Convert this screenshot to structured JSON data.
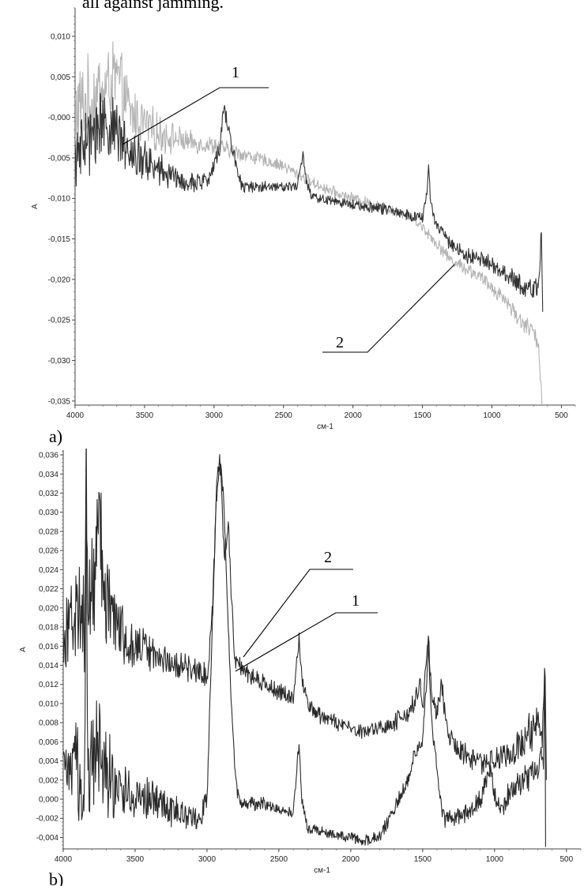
{
  "page_header_text": "all against jamming.",
  "chart_data": [
    {
      "type": "line",
      "panel_label": "a)",
      "xlabel": "см-1",
      "ylabel": "A",
      "xlim": [
        4000,
        400
      ],
      "ylim": [
        -0.0355,
        0.0135
      ],
      "x_ticks": [
        4000,
        3500,
        3000,
        2500,
        2000,
        1500,
        1000,
        500
      ],
      "x_tick_labels": [
        "4000",
        "3500",
        "3000",
        "2500",
        "2000",
        "1500",
        "1000",
        "500"
      ],
      "y_ticks": [
        0.01,
        0.005,
        0.0,
        -0.005,
        -0.01,
        -0.015,
        -0.02,
        -0.025,
        -0.03,
        -0.035
      ],
      "y_tick_labels": [
        "0,010",
        "0,005",
        "-0,000",
        "-0,005",
        "-0,010",
        "-0,015",
        "-0,020",
        "-0,025",
        "-0,030",
        "-0,035"
      ],
      "annotations": [
        "1",
        "2"
      ],
      "series": [
        {
          "color": "#b4b4b4",
          "noise": [
            [
              4000,
              0.0045
            ],
            [
              3800,
              0.005
            ],
            [
              3600,
              0.003
            ],
            [
              3200,
              0.0012
            ],
            [
              2800,
              0.0008
            ],
            [
              2500,
              0.0006
            ],
            [
              1500,
              0.0006
            ],
            [
              1000,
              0.0008
            ],
            [
              700,
              0.001
            ]
          ],
          "x": [
            4000,
            3800,
            3700,
            3600,
            3400,
            3200,
            3000,
            2900,
            2800,
            2500,
            2400,
            2300,
            2100,
            1900,
            1700,
            1600,
            1500,
            1400,
            1300,
            1200,
            1100,
            1000,
            900,
            800,
            700,
            660,
            640
          ],
          "y": [
            0.001,
            0.003,
            0.005,
            0.0005,
            -0.002,
            -0.003,
            -0.0035,
            -0.004,
            -0.0045,
            -0.006,
            -0.007,
            -0.008,
            -0.0095,
            -0.0105,
            -0.0115,
            -0.012,
            -0.0135,
            -0.0155,
            -0.0175,
            -0.0185,
            -0.0195,
            -0.021,
            -0.0225,
            -0.025,
            -0.0265,
            -0.029,
            -0.035
          ]
        },
        {
          "color": "#333333",
          "noise": [
            [
              4000,
              0.0035
            ],
            [
              3800,
              0.004
            ],
            [
              3600,
              0.0025
            ],
            [
              3200,
              0.0012
            ],
            [
              2800,
              0.0007
            ],
            [
              2500,
              0.0005
            ],
            [
              1500,
              0.0006
            ],
            [
              1000,
              0.0009
            ],
            [
              700,
              0.0012
            ]
          ],
          "x": [
            4000,
            3850,
            3800,
            3600,
            3400,
            3200,
            3050,
            2960,
            2930,
            2900,
            2870,
            2840,
            2800,
            2600,
            2400,
            2360,
            2340,
            2300,
            2100,
            1900,
            1700,
            1500,
            1470,
            1455,
            1440,
            1400,
            1300,
            1200,
            1100,
            1000,
            900,
            800,
            700,
            660,
            645,
            635
          ],
          "y": [
            -0.005,
            -0.002,
            0.0,
            -0.004,
            -0.0065,
            -0.008,
            -0.008,
            -0.004,
            0.0015,
            -0.001,
            -0.0035,
            -0.006,
            -0.0085,
            -0.0085,
            -0.0085,
            -0.0045,
            -0.0075,
            -0.0098,
            -0.0105,
            -0.011,
            -0.0115,
            -0.0125,
            -0.0095,
            -0.006,
            -0.0105,
            -0.0135,
            -0.0155,
            -0.017,
            -0.0175,
            -0.018,
            -0.0195,
            -0.0205,
            -0.0215,
            -0.02,
            -0.014,
            -0.024
          ]
        }
      ]
    },
    {
      "type": "line",
      "panel_label": "b)",
      "xlabel": "см-1",
      "ylabel": "A",
      "xlim": [
        4000,
        400
      ],
      "ylim": [
        -0.0052,
        0.0365
      ],
      "x_ticks": [
        4000,
        3500,
        3000,
        2500,
        2000,
        1500,
        1000,
        500
      ],
      "x_tick_labels": [
        "4000",
        "3500",
        "3000",
        "2500",
        "2000",
        "1500",
        "1000",
        "500"
      ],
      "y_ticks": [
        0.036,
        0.034,
        0.032,
        0.03,
        0.028,
        0.026,
        0.024,
        0.022,
        0.02,
        0.018,
        0.016,
        0.014,
        0.012,
        0.01,
        0.008,
        0.006,
        0.004,
        0.002,
        0.0,
        -0.002,
        -0.004
      ],
      "y_tick_labels": [
        "0,036",
        "0,034",
        "0,032",
        "0,030",
        "0,028",
        "0,026",
        "0,024",
        "0,022",
        "0,020",
        "0,018",
        "0,016",
        "0,014",
        "0,012",
        "0,010",
        "0,008",
        "0,006",
        "0,004",
        "0,002",
        "0,000",
        "-0,002",
        "-0,004"
      ],
      "annotations": [
        "2",
        "1"
      ],
      "series": [
        {
          "color": "#2a2a2a",
          "noise": [
            [
              4000,
              0.0045
            ],
            [
              3750,
              0.0055
            ],
            [
              3500,
              0.002
            ],
            [
              3100,
              0.0012
            ],
            [
              2600,
              0.0008
            ],
            [
              2000,
              0.0007
            ],
            [
              1500,
              0.001
            ],
            [
              1000,
              0.0012
            ],
            [
              700,
              0.002
            ]
          ],
          "x": [
            4000,
            3900,
            3850,
            3840,
            3830,
            3800,
            3750,
            3700,
            3600,
            3400,
            3200,
            3000,
            2960,
            2930,
            2910,
            2880,
            2850,
            2820,
            2800,
            2750,
            2600,
            2400,
            2360,
            2340,
            2300,
            2200,
            2000,
            1900,
            1800,
            1700,
            1600,
            1550,
            1520,
            1500,
            1480,
            1460,
            1440,
            1400,
            1370,
            1340,
            1300,
            1200,
            1100,
            1000,
            900,
            800,
            750,
            700,
            680,
            660,
            650,
            640
          ],
          "y": [
            0.018,
            0.02,
            0.018,
            0.038,
            0.018,
            0.022,
            0.029,
            0.021,
            0.017,
            0.0155,
            0.014,
            0.013,
            0.02,
            0.034,
            0.036,
            0.026,
            0.028,
            0.018,
            0.0145,
            0.0135,
            0.012,
            0.0105,
            0.017,
            0.0125,
            0.0098,
            0.0085,
            0.0075,
            0.007,
            0.0075,
            0.008,
            0.009,
            0.0105,
            0.012,
            0.009,
            0.014,
            0.017,
            0.011,
            0.009,
            0.012,
            0.008,
            0.006,
            0.0045,
            0.004,
            0.004,
            0.005,
            0.006,
            0.007,
            0.008,
            0.006,
            0.008,
            0.015,
            0.002
          ]
        },
        {
          "color": "#2a2a2a",
          "noise": [
            [
              4000,
              0.0035
            ],
            [
              3750,
              0.005
            ],
            [
              3500,
              0.002
            ],
            [
              3100,
              0.0012
            ],
            [
              2800,
              0.0006
            ],
            [
              2000,
              0.0005
            ],
            [
              1500,
              0.0008
            ],
            [
              1000,
              0.001
            ],
            [
              700,
              0.0015
            ]
          ],
          "x": [
            4000,
            3900,
            3850,
            3840,
            3830,
            3800,
            3750,
            3700,
            3600,
            3400,
            3200,
            3050,
            3000,
            2970,
            2940,
            2920,
            2900,
            2880,
            2850,
            2830,
            2810,
            2790,
            2750,
            2600,
            2400,
            2360,
            2340,
            2300,
            2200,
            2000,
            1900,
            1800,
            1700,
            1600,
            1550,
            1500,
            1470,
            1460,
            1450,
            1430,
            1400,
            1370,
            1350,
            1300,
            1200,
            1100,
            1030,
            1000,
            950,
            900,
            800,
            700,
            680,
            660,
            650,
            645
          ],
          "y": [
            0.002,
            0.003,
            0.001,
            0.036,
            0.001,
            0.004,
            0.006,
            0.003,
            0.001,
            0.0,
            -0.0015,
            -0.002,
            0.0,
            0.015,
            0.03,
            0.034,
            0.035,
            0.03,
            0.017,
            0.01,
            0.004,
            0.0005,
            -0.0005,
            -0.0005,
            -0.0015,
            0.006,
            0.0,
            -0.003,
            -0.0035,
            -0.004,
            -0.0043,
            -0.004,
            -0.001,
            0.002,
            0.005,
            0.006,
            0.013,
            0.016,
            0.012,
            0.007,
            0.003,
            -0.001,
            -0.002,
            -0.002,
            -0.0015,
            0.0,
            0.003,
            0.0005,
            -0.001,
            0.0005,
            0.002,
            0.003,
            0.005,
            0.003,
            0.015,
            -0.005
          ]
        }
      ]
    }
  ]
}
